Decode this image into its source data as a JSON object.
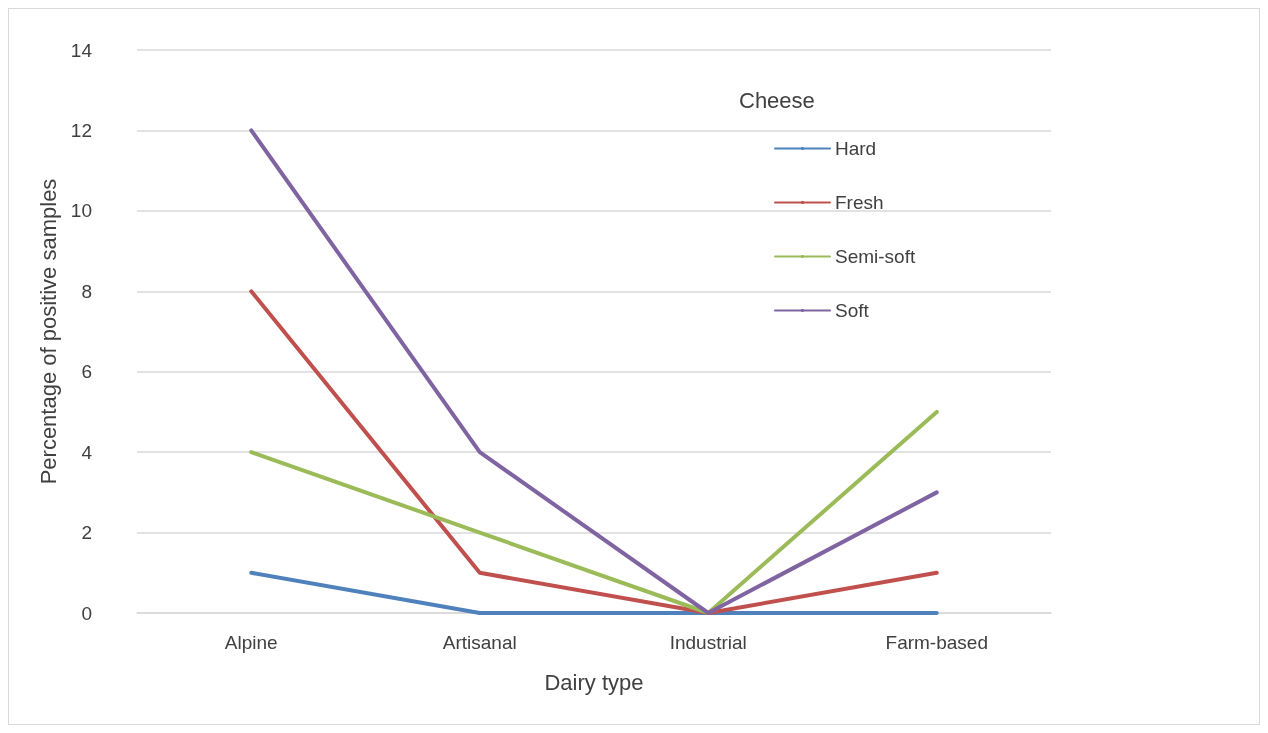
{
  "chart_data": {
    "type": "line",
    "xlabel": "Dairy type",
    "ylabel": "Percentage of positive samples",
    "legend_title": "Cheese",
    "categories": [
      "Alpine",
      "Artisanal",
      "Industrial",
      "Farm-based"
    ],
    "series": [
      {
        "name": "Hard",
        "color": "#4f81bd",
        "values": [
          1,
          0,
          0,
          0
        ]
      },
      {
        "name": "Fresh",
        "color": "#c0504d",
        "values": [
          8,
          1,
          0,
          1
        ]
      },
      {
        "name": "Semi-soft",
        "color": "#9bbb59",
        "values": [
          4,
          2,
          0,
          5
        ]
      },
      {
        "name": "Soft",
        "color": "#8064a2",
        "values": [
          12,
          4,
          0,
          3
        ]
      }
    ],
    "ylim": [
      0,
      14
    ],
    "yticks": [
      0,
      2,
      4,
      6,
      8,
      10,
      12,
      14
    ],
    "grid": "y",
    "legend": "top right",
    "marker": "none",
    "line_style": "solid"
  }
}
